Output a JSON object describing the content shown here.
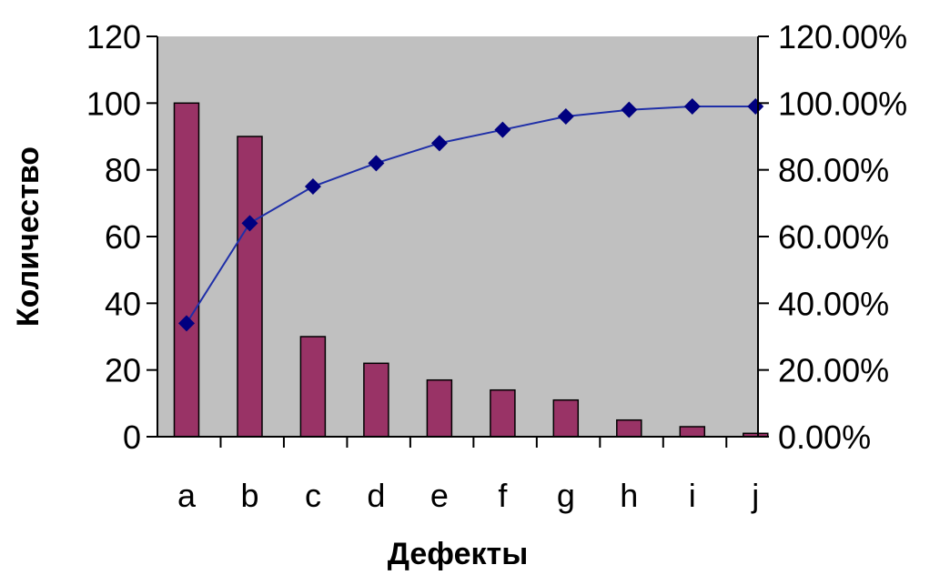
{
  "chart_data": {
    "type": "bar",
    "title": "",
    "xlabel": "Дефекты",
    "ylabel": "Количество",
    "y2label": "",
    "categories": [
      "a",
      "b",
      "c",
      "d",
      "e",
      "f",
      "g",
      "h",
      "i",
      "j"
    ],
    "ylim": [
      0,
      120
    ],
    "y2lim": [
      0,
      120
    ],
    "yticks": [
      "0",
      "20",
      "40",
      "60",
      "80",
      "100",
      "120"
    ],
    "y2ticks": [
      "0.00%",
      "20.00%",
      "40.00%",
      "60.00%",
      "80.00%",
      "100.00%",
      "120.00%"
    ],
    "series": [
      {
        "type": "bar",
        "axis": "left",
        "color": "#993366",
        "values": [
          100,
          90,
          30,
          22,
          17,
          14,
          11,
          5,
          3,
          1
        ]
      },
      {
        "type": "line",
        "axis": "right",
        "unit": "%",
        "color": "#000080",
        "marker": "diamond",
        "values": [
          34,
          64,
          75,
          82,
          88,
          92,
          96,
          98,
          99,
          99
        ]
      }
    ],
    "grid": false,
    "legend": "none",
    "plot_background": "#c0c0c0"
  }
}
